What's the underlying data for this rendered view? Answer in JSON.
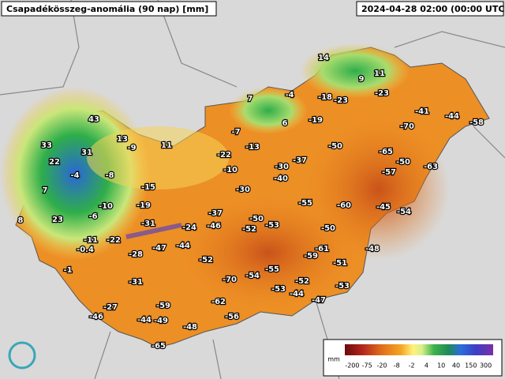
{
  "header": {
    "title": "Csapadékösszeg-anomália (90 nap) [mm]",
    "timestamp": "2024-04-28 02:00 (00:00 UTC)"
  },
  "labels": [
    14,
    9,
    11,
    7,
    -4,
    -18,
    -23,
    -23,
    6,
    -19,
    -41,
    -44,
    -58,
    43,
    13,
    -9,
    11,
    -7,
    -13,
    -70,
    33,
    31,
    -22,
    -50,
    -65,
    22,
    -4,
    -8,
    -10,
    -30,
    -37,
    -50,
    -63,
    -57,
    -40,
    7,
    -15,
    -30,
    -55,
    -60,
    -45,
    -54,
    -6,
    -10,
    -19,
    -37,
    23,
    8,
    -31,
    -24,
    -46,
    -50,
    -53,
    -52,
    -50,
    -11,
    -22,
    -47,
    -44,
    -0.4,
    -28,
    -61,
    -59,
    -51,
    -48,
    -52,
    -1,
    -55,
    -70,
    -54,
    -52,
    -31,
    -53,
    -44,
    -53,
    -27,
    -59,
    -62,
    -47,
    -46,
    -44,
    -49,
    -56,
    -48,
    -65
  ],
  "legend": {
    "unit": "mm",
    "ticks": [
      -200,
      -75,
      -20,
      -8,
      -2,
      4,
      10,
      40,
      150,
      300
    ]
  }
}
